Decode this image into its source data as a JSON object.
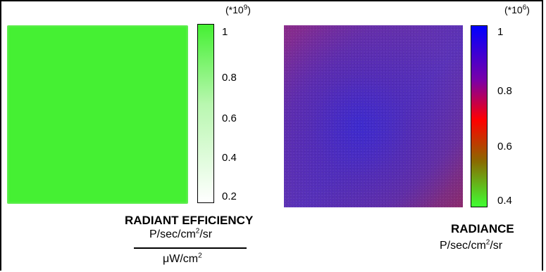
{
  "left_panel": {
    "colorbar": {
      "multiplier_text": "(*10",
      "multiplier_exp": "9",
      "multiplier_close": ")",
      "ticks": [
        "1",
        "0.8",
        "0.6",
        "0.4",
        "0.2"
      ]
    },
    "title": "RADIANT EFFICIENCY",
    "unit_numerator_prefix": "P/sec/cm",
    "unit_numerator_exp": "2",
    "unit_numerator_suffix": "/sr",
    "unit_denominator_prefix": "μW/cm",
    "unit_denominator_exp": "2",
    "colors": {
      "top": "#45f033",
      "bottom": "#ffffff"
    }
  },
  "right_panel": {
    "colorbar": {
      "multiplier_text": "(*10",
      "multiplier_exp": "6",
      "multiplier_close": ")",
      "ticks": [
        "1",
        "0.8",
        "0.6",
        "0.4"
      ]
    },
    "title": "RADIANCE",
    "unit_prefix": "P/sec/cm",
    "unit_exp": "2",
    "unit_suffix": "/sr",
    "colors": {
      "top": "#0000ff",
      "middle": "#ff0000",
      "bottom": "#40ff33"
    }
  }
}
